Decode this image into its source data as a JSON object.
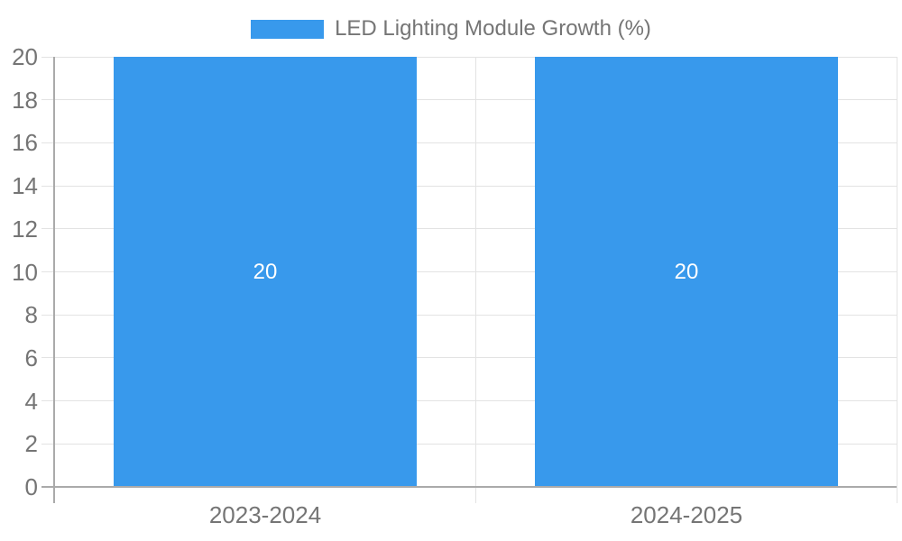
{
  "window": {
    "background": "#ffffff"
  },
  "legend": {
    "label": "LED Lighting Module Growth (%)"
  },
  "colors": {
    "bar": "#3899ec",
    "grid_light": "#e3e3e3",
    "axis_dark": "#aaaaaa",
    "text": "#757575",
    "value_text": "#ffffff",
    "background": "#ffffff"
  },
  "chart_data": {
    "type": "bar",
    "title": "LED Lighting Module Growth (%)",
    "categories": [
      "2023-2024",
      "2024-2025"
    ],
    "values": [
      20,
      20
    ],
    "data_labels": [
      "20",
      "20"
    ],
    "xlabel": "",
    "ylabel": "",
    "ylim": [
      0,
      20
    ],
    "yticks": [
      0,
      2,
      4,
      6,
      8,
      10,
      12,
      14,
      16,
      18,
      20
    ],
    "grid": true,
    "legend_position": "top",
    "legend_entries": [
      "LED Lighting Module Growth (%)"
    ],
    "bar_category_fraction": 0.72
  }
}
